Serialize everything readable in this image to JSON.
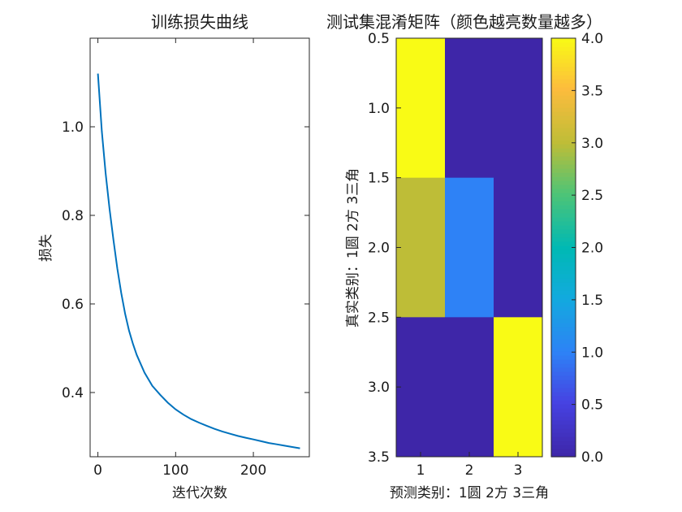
{
  "chart_data": [
    {
      "type": "line",
      "title": "训练损失曲线",
      "xlabel": "迭代次数",
      "ylabel": "损失",
      "xlim": [
        -10,
        272
      ],
      "ylim": [
        0.255,
        1.2
      ],
      "xticks": [
        0,
        100,
        200
      ],
      "yticks": [
        0.4,
        0.6,
        0.8,
        1.0
      ],
      "xtick_labels": [
        "0",
        "100",
        "200"
      ],
      "ytick_labels": [
        "0.4",
        "0.6",
        "0.8",
        "1.0"
      ],
      "grid": false,
      "series": [
        {
          "color": "#0072BD",
          "x": [
            0,
            5,
            10,
            15,
            20,
            25,
            30,
            35,
            40,
            45,
            50,
            60,
            70,
            80,
            90,
            100,
            110,
            120,
            130,
            140,
            150,
            160,
            170,
            180,
            190,
            200,
            210,
            220,
            230,
            240,
            250,
            260
          ],
          "y": [
            1.12,
            0.99,
            0.895,
            0.815,
            0.745,
            0.68,
            0.625,
            0.578,
            0.54,
            0.51,
            0.485,
            0.445,
            0.415,
            0.395,
            0.377,
            0.362,
            0.35,
            0.34,
            0.332,
            0.325,
            0.318,
            0.312,
            0.307,
            0.302,
            0.298,
            0.294,
            0.29,
            0.286,
            0.283,
            0.28,
            0.277,
            0.274
          ]
        }
      ]
    },
    {
      "type": "heatmap",
      "title": "测试集混淆矩阵（颜色越亮数量越多）",
      "xlabel": "预测类别：1圆 2方 3三角",
      "ylabel": "真实类别：1圆 2方 3三角",
      "x_categories": [
        "1",
        "2",
        "3"
      ],
      "y_categories": [
        "1",
        "2",
        "3"
      ],
      "values": [
        [
          4,
          0,
          0
        ],
        [
          3,
          1,
          0
        ],
        [
          0,
          0,
          4
        ]
      ],
      "ylim": [
        0.5,
        3.5
      ],
      "yticks": [
        0.5,
        1.0,
        1.5,
        2.0,
        2.5,
        3.0,
        3.5
      ],
      "ytick_labels": [
        "0.5",
        "1.0",
        "1.5",
        "2.0",
        "2.5",
        "3.0",
        "3.5"
      ],
      "colormap": "parula",
      "colorbar": {
        "range": [
          0,
          4
        ],
        "ticks": [
          0,
          0.5,
          1.0,
          1.5,
          2.0,
          2.5,
          3.0,
          3.5,
          4.0
        ],
        "tick_labels": [
          "0.0",
          "0.5",
          "1.0",
          "1.5",
          "2.0",
          "2.5",
          "3.0",
          "3.5",
          "4.0"
        ]
      }
    }
  ]
}
